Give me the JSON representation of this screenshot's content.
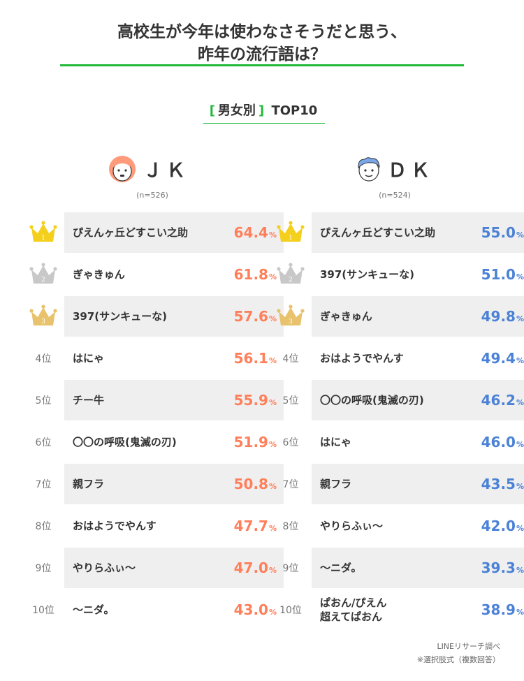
{
  "title": [
    "高校生が今年は使わなさそうだと思う、",
    "昨年の流行語は？"
  ],
  "subtitle": {
    "bracket_text": "男女別",
    "tail": "TOP10",
    "open": "[",
    "close": "]"
  },
  "colors": {
    "jk_accent": "#ff7f5a",
    "dk_accent": "#4b82d6",
    "green": "#1fb93a",
    "gold": "#f4cf1c",
    "silver": "#c8c8c8",
    "bronze": "#e8c26c"
  },
  "groups": {
    "jk": {
      "name": "ＪＫ",
      "n": "(n=526)",
      "icon": "girl-face-icon"
    },
    "dk": {
      "name": "ＤＫ",
      "n": "(n=524)",
      "icon": "boy-face-icon"
    }
  },
  "rank_suffix": "位",
  "footer": [
    "LINEリサーチ調べ",
    "※選択肢式（複数回答）"
  ],
  "chart_data": [
    {
      "type": "table",
      "series_name": "ＪＫ",
      "unit": "%",
      "rows": [
        {
          "rank": 1,
          "term": "ぴえんヶ丘どすこい之助",
          "value": "64.4"
        },
        {
          "rank": 2,
          "term": "ぎゃきゅん",
          "value": "61.8"
        },
        {
          "rank": 3,
          "term": "397(サンキューな)",
          "value": "57.6"
        },
        {
          "rank": 4,
          "term": "はにゃ",
          "value": "56.1"
        },
        {
          "rank": 5,
          "term": "チー牛",
          "value": "55.9"
        },
        {
          "rank": 6,
          "term": "〇〇の呼吸(鬼滅の刃)",
          "value": "51.9"
        },
        {
          "rank": 7,
          "term": "親フラ",
          "value": "50.8"
        },
        {
          "rank": 8,
          "term": "おはようでやんす",
          "value": "47.7"
        },
        {
          "rank": 9,
          "term": "やりらふぃ〜",
          "value": "47.0"
        },
        {
          "rank": 10,
          "term": "〜ニダ。",
          "value": "43.0"
        }
      ]
    },
    {
      "type": "table",
      "series_name": "ＤＫ",
      "unit": "%",
      "rows": [
        {
          "rank": 1,
          "term": "ぴえんヶ丘どすこい之助",
          "value": "55.0"
        },
        {
          "rank": 2,
          "term": "397(サンキューな)",
          "value": "51.0"
        },
        {
          "rank": 3,
          "term": "ぎゃきゅん",
          "value": "49.8"
        },
        {
          "rank": 4,
          "term": "おはようでやんす",
          "value": "49.4"
        },
        {
          "rank": 5,
          "term": "〇〇の呼吸(鬼滅の刃)",
          "value": "46.2"
        },
        {
          "rank": 6,
          "term": "はにゃ",
          "value": "46.0"
        },
        {
          "rank": 7,
          "term": "親フラ",
          "value": "43.5"
        },
        {
          "rank": 8,
          "term": "やりらふぃ〜",
          "value": "42.0"
        },
        {
          "rank": 9,
          "term": "〜ニダ。",
          "value": "39.3"
        },
        {
          "rank": 10,
          "term": "ぱおん/ぴえん\n超えてぱおん",
          "value": "38.9"
        }
      ]
    }
  ]
}
